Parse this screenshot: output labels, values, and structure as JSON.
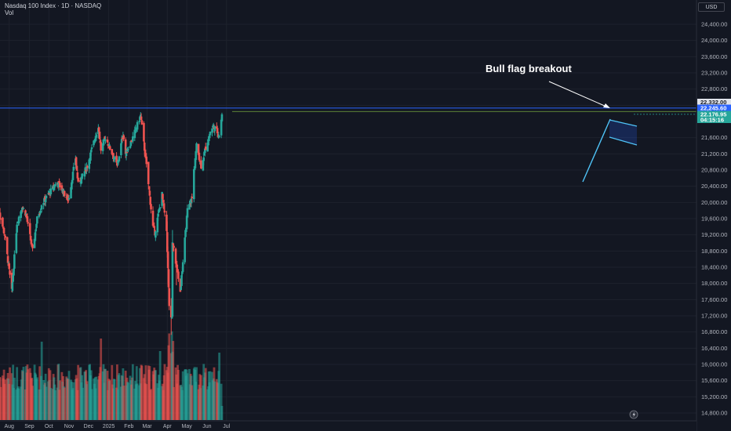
{
  "header": {
    "symbol_line": "Nasdaq 100 Index · 1D · NASDAQ",
    "volume_label": "Vol"
  },
  "currency_button": "USD",
  "colors": {
    "background": "#131722",
    "up": "#26a69a",
    "down": "#ef5350",
    "grid": "#1e222d",
    "resistance_line": "#2962ff",
    "flag_line": "#4fc3f7"
  },
  "price_tags": [
    {
      "label": "22,332.00",
      "bg": "#e0e3eb",
      "fg": "#131722"
    },
    {
      "label": "22,245.60",
      "bg": "#2962ff",
      "fg": "#ffffff"
    },
    {
      "label": "22,176.95",
      "bg": "#26a69a",
      "fg": "#ffffff"
    },
    {
      "label": "04:15:16",
      "bg": "#26a69a",
      "fg": "#ffffff"
    }
  ],
  "annotation": {
    "text": "Bull flag breakout"
  },
  "chart_data": {
    "type": "candlestick",
    "price_axis_ticks": [
      "24,400.00",
      "24,000.00",
      "23,600.00",
      "23,200.00",
      "22,800.00",
      "22,400.00",
      "21,600.00",
      "21,200.00",
      "20,800.00",
      "20,400.00",
      "20,000.00",
      "19,600.00",
      "19,200.00",
      "18,800.00",
      "18,400.00",
      "18,000.00",
      "17,600.00",
      "17,200.00",
      "16,800.00",
      "16,400.00",
      "16,000.00",
      "15,600.00",
      "15,200.00",
      "14,800.00"
    ],
    "time_axis_labels": [
      "Aug",
      "Sep",
      "Oct",
      "Nov",
      "Dec",
      "2025",
      "Feb",
      "Mar",
      "Apr",
      "May",
      "Jun",
      "Jul"
    ],
    "y_range": [
      14800,
      24700
    ],
    "horizontal_levels": [
      22332,
      22245.6
    ],
    "last_price": 22176.95,
    "anchors": [
      {
        "date": "2024-07-15",
        "close": 19900
      },
      {
        "date": "2024-07-25",
        "close": 19200
      },
      {
        "date": "2024-08-05",
        "close": 17800
      },
      {
        "date": "2024-08-13",
        "close": 19500
      },
      {
        "date": "2024-08-21",
        "close": 19900
      },
      {
        "date": "2024-08-27",
        "close": 19700
      },
      {
        "date": "2024-09-06",
        "close": 18800
      },
      {
        "date": "2024-09-13",
        "close": 19600
      },
      {
        "date": "2024-09-20",
        "close": 19950
      },
      {
        "date": "2024-09-30",
        "close": 20200
      },
      {
        "date": "2024-10-14",
        "close": 20500
      },
      {
        "date": "2024-10-18",
        "close": 20400
      },
      {
        "date": "2024-10-31",
        "close": 20050
      },
      {
        "date": "2024-11-11",
        "close": 21100
      },
      {
        "date": "2024-11-15",
        "close": 20450
      },
      {
        "date": "2024-11-29",
        "close": 20900
      },
      {
        "date": "2024-12-16",
        "close": 21900
      },
      {
        "date": "2024-12-20",
        "close": 21300
      },
      {
        "date": "2024-12-27",
        "close": 21600
      },
      {
        "date": "2025-01-08",
        "close": 21150
      },
      {
        "date": "2025-01-14",
        "close": 20900
      },
      {
        "date": "2025-01-23",
        "close": 21700
      },
      {
        "date": "2025-01-27",
        "close": 21200
      },
      {
        "date": "2025-02-07",
        "close": 21600
      },
      {
        "date": "2025-02-19",
        "close": 22150
      },
      {
        "date": "2025-02-28",
        "close": 20900
      },
      {
        "date": "2025-03-10",
        "close": 19400
      },
      {
        "date": "2025-03-13",
        "close": 19250
      },
      {
        "date": "2025-03-24",
        "close": 20200
      },
      {
        "date": "2025-03-31",
        "close": 19300
      },
      {
        "date": "2025-04-04",
        "close": 17400
      },
      {
        "date": "2025-04-08",
        "close": 17100
      },
      {
        "date": "2025-04-09",
        "close": 19000
      },
      {
        "date": "2025-04-17",
        "close": 18250
      },
      {
        "date": "2025-04-21",
        "close": 17800
      },
      {
        "date": "2025-05-02",
        "close": 19800
      },
      {
        "date": "2025-05-09",
        "close": 20100
      },
      {
        "date": "2025-05-12",
        "close": 20800
      },
      {
        "date": "2025-05-16",
        "close": 21400
      },
      {
        "date": "2025-05-23",
        "close": 20900
      },
      {
        "date": "2025-05-30",
        "close": 21350
      },
      {
        "date": "2025-06-06",
        "close": 21750
      },
      {
        "date": "2025-06-11",
        "close": 21900
      },
      {
        "date": "2025-06-20",
        "close": 21650
      },
      {
        "date": "2025-06-24",
        "close": 22176.95
      }
    ]
  }
}
